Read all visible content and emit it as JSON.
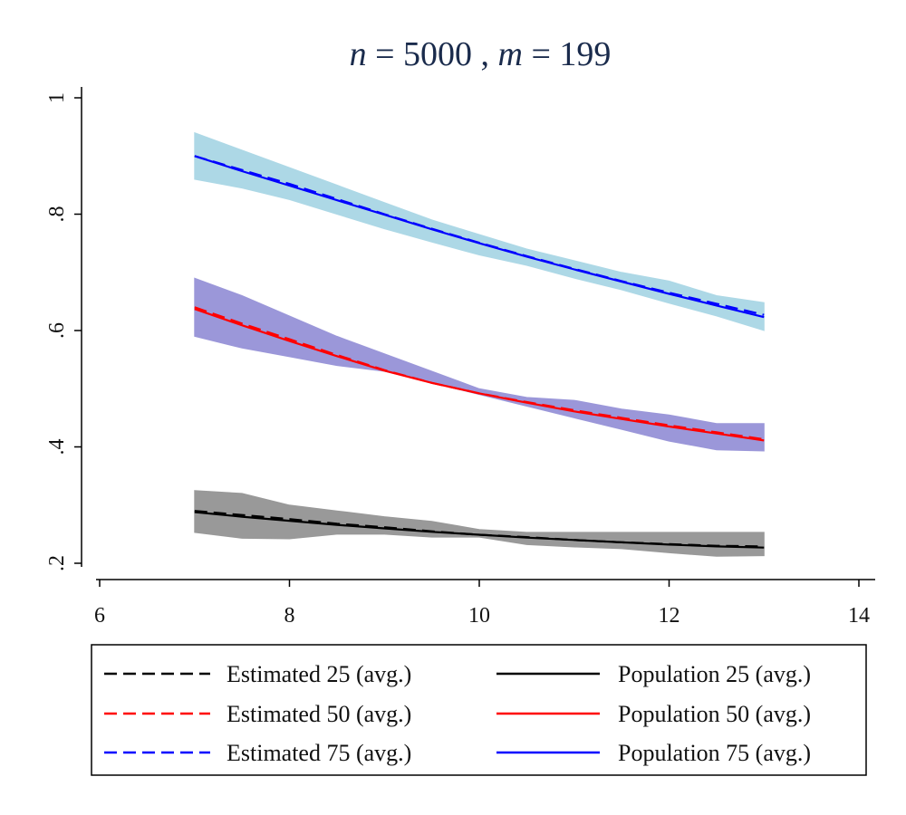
{
  "chart_data": {
    "type": "line",
    "title_parts": {
      "n_var": "n",
      "n_eq": " = 5000 , ",
      "m_var": "m",
      "m_eq": " = 199"
    },
    "xlabel": "",
    "ylabel": "",
    "xlim": [
      6,
      14
    ],
    "ylim": [
      0.2,
      1.0
    ],
    "xticks": [
      6,
      8,
      10,
      12,
      14
    ],
    "xtick_labels": [
      "6",
      "8",
      "10",
      "12",
      "14"
    ],
    "yticks": [
      0.2,
      0.4,
      0.6,
      0.8,
      1.0
    ],
    "ytick_labels": [
      ".2",
      ".4",
      ".6",
      ".8",
      "1"
    ],
    "grid": false,
    "legend_position": "bottom",
    "x": [
      7.0,
      7.5,
      8.0,
      8.5,
      9.0,
      9.5,
      10.0,
      10.5,
      11.0,
      11.5,
      12.0,
      12.5,
      13.0
    ],
    "series": [
      {
        "name": "Estimated 25 (avg.)",
        "style": "dashed",
        "color": "#000000",
        "values": [
          0.29,
          0.283,
          0.276,
          0.268,
          0.262,
          0.255,
          0.249,
          0.245,
          0.24,
          0.236,
          0.233,
          0.23,
          0.229
        ]
      },
      {
        "name": "Population 25 (avg.)",
        "style": "solid",
        "color": "#000000",
        "values": [
          0.288,
          0.28,
          0.273,
          0.266,
          0.26,
          0.254,
          0.249,
          0.244,
          0.24,
          0.236,
          0.232,
          0.229,
          0.227
        ]
      },
      {
        "name": "Estimated 50 (avg.)",
        "style": "dashed",
        "color": "#ff0000",
        "values": [
          0.64,
          0.612,
          0.585,
          0.558,
          0.532,
          0.51,
          0.492,
          0.477,
          0.463,
          0.45,
          0.437,
          0.425,
          0.413
        ]
      },
      {
        "name": "Population 50 (avg.)",
        "style": "solid",
        "color": "#ff0000",
        "values": [
          0.637,
          0.609,
          0.582,
          0.556,
          0.531,
          0.51,
          0.492,
          0.476,
          0.461,
          0.448,
          0.435,
          0.423,
          0.411
        ]
      },
      {
        "name": "Estimated 75 (avg.)",
        "style": "dashed",
        "color": "#0000ff",
        "values": [
          0.9,
          0.876,
          0.852,
          0.826,
          0.8,
          0.775,
          0.751,
          0.728,
          0.706,
          0.685,
          0.665,
          0.646,
          0.627
        ]
      },
      {
        "name": "Population 75 (avg.)",
        "style": "solid",
        "color": "#0000ff",
        "values": [
          0.9,
          0.874,
          0.849,
          0.824,
          0.799,
          0.774,
          0.75,
          0.727,
          0.705,
          0.684,
          0.663,
          0.643,
          0.623
        ]
      }
    ],
    "bands": [
      {
        "name": "25 band",
        "color": "#999999",
        "lower": [
          0.253,
          0.243,
          0.242,
          0.25,
          0.25,
          0.245,
          0.245,
          0.232,
          0.228,
          0.225,
          0.218,
          0.212,
          0.213
        ],
        "upper": [
          0.325,
          0.32,
          0.3,
          0.29,
          0.28,
          0.272,
          0.258,
          0.253,
          0.253,
          0.253,
          0.253,
          0.253,
          0.253
        ]
      },
      {
        "name": "50 band",
        "color": "#9b97d9",
        "lower": [
          0.59,
          0.57,
          0.555,
          0.54,
          0.53,
          0.51,
          0.49,
          0.47,
          0.45,
          0.43,
          0.41,
          0.395,
          0.393
        ],
        "upper": [
          0.69,
          0.66,
          0.625,
          0.59,
          0.56,
          0.53,
          0.5,
          0.485,
          0.48,
          0.465,
          0.455,
          0.44,
          0.44
        ]
      },
      {
        "name": "75 band",
        "color": "#add8e6",
        "lower": [
          0.86,
          0.845,
          0.825,
          0.8,
          0.775,
          0.752,
          0.73,
          0.712,
          0.69,
          0.67,
          0.647,
          0.625,
          0.6
        ],
        "upper": [
          0.94,
          0.91,
          0.88,
          0.85,
          0.82,
          0.79,
          0.765,
          0.74,
          0.72,
          0.7,
          0.685,
          0.66,
          0.648
        ]
      }
    ],
    "legend": {
      "entries": [
        {
          "label": "Estimated 25 (avg.)",
          "style": "dashed",
          "color": "#000000"
        },
        {
          "label": "Population 25 (avg.)",
          "style": "solid",
          "color": "#000000"
        },
        {
          "label": "Estimated 50 (avg.)",
          "style": "dashed",
          "color": "#ff0000"
        },
        {
          "label": "Population 50 (avg.)",
          "style": "solid",
          "color": "#ff0000"
        },
        {
          "label": "Estimated 75 (avg.)",
          "style": "dashed",
          "color": "#0000ff"
        },
        {
          "label": "Population 75 (avg.)",
          "style": "solid",
          "color": "#0000ff"
        }
      ]
    }
  }
}
